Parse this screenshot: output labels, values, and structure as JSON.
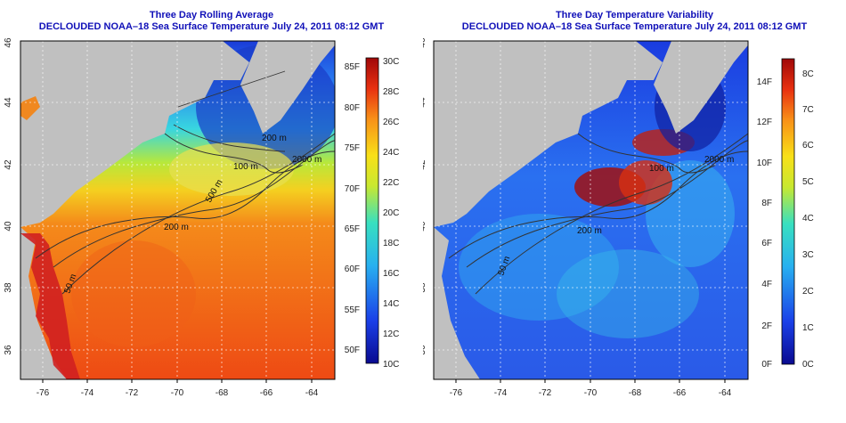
{
  "left": {
    "title1": "Three Day Rolling Average",
    "title2": "DECLOUDED NOAA–18 Sea Surface Temperature July 24, 2011 08:12 GMT",
    "colorbar_f": [
      "50F",
      "55F",
      "60F",
      "65F",
      "70F",
      "75F",
      "80F",
      "85F"
    ],
    "colorbar_c": [
      "10C",
      "12C",
      "14C",
      "16C",
      "18C",
      "20C",
      "22C",
      "24C",
      "26C",
      "28C",
      "30C"
    ],
    "contours": [
      "50 m",
      "200 m",
      "500 m",
      "100 m",
      "2000 m",
      "200 m"
    ]
  },
  "right": {
    "title1": "Three Day Temperature Variability",
    "title2": "DECLOUDED NOAA–18 Sea Surface Temperature July 24, 2011 08:12 GMT",
    "colorbar_f": [
      "0F",
      "2F",
      "4F",
      "6F",
      "8F",
      "10F",
      "12F",
      "14F"
    ],
    "colorbar_c": [
      "0C",
      "1C",
      "2C",
      "3C",
      "4C",
      "5C",
      "6C",
      "7C",
      "8C"
    ],
    "contours": [
      "50 m",
      "200 m",
      "100 m",
      "2000 m"
    ]
  },
  "axes": {
    "x_ticks": [
      "-76",
      "-74",
      "-72",
      "-70",
      "-68",
      "-66",
      "-64"
    ],
    "y_ticks": [
      "36",
      "38",
      "40",
      "42",
      "44",
      "46"
    ]
  },
  "colors": {
    "title": "#1010b8",
    "land": "#c0c0c0"
  }
}
